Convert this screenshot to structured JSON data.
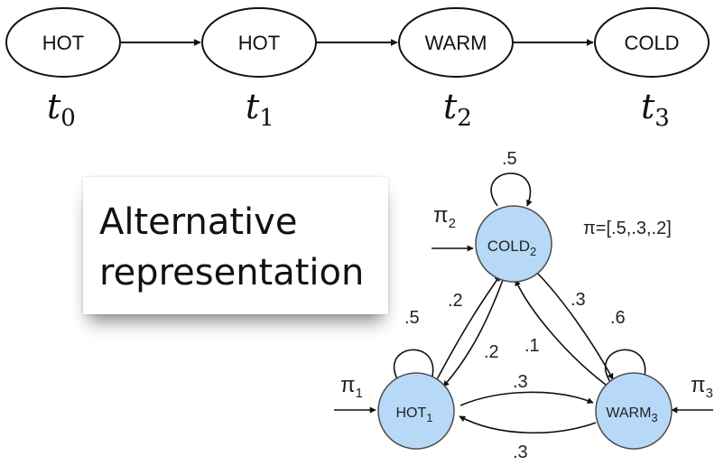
{
  "chain": {
    "states": [
      "HOT",
      "HOT",
      "WARM",
      "COLD"
    ],
    "times": [
      {
        "base": "t",
        "sub": "0"
      },
      {
        "base": "t",
        "sub": "1"
      },
      {
        "base": "t",
        "sub": "2"
      },
      {
        "base": "t",
        "sub": "3"
      }
    ]
  },
  "callout": {
    "line1": "Alternative",
    "line2": "representation"
  },
  "graph": {
    "node_color": "#b7d9f7",
    "nodes": {
      "cold": {
        "base": "COLD",
        "sub": "2"
      },
      "hot": {
        "base": "HOT",
        "sub": "1"
      },
      "warm": {
        "base": "WARM",
        "sub": "3"
      }
    },
    "pi_vector": "π=[.5,.3,.2]",
    "pi_labels": {
      "cold": {
        "base": "π",
        "sub": "2"
      },
      "hot": {
        "base": "π",
        "sub": "1"
      },
      "warm": {
        "base": "π",
        "sub": "3"
      }
    },
    "self_loops": {
      "cold": ".5",
      "hot": ".5",
      "warm": ".6"
    },
    "transitions": {
      "hot_to_cold": ".2",
      "cold_to_hot": ".2",
      "cold_to_warm": ".3",
      "warm_to_cold": ".1",
      "hot_to_warm": ".3",
      "warm_to_hot": ".3"
    }
  }
}
